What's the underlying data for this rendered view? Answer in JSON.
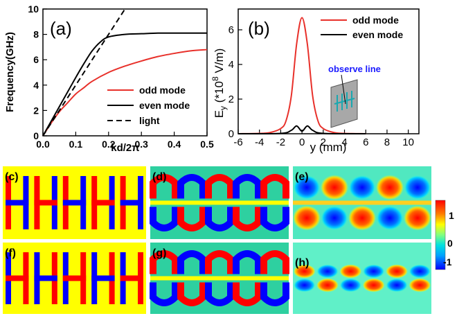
{
  "figure": {
    "colorbar": {
      "ticks": [
        "1",
        "0",
        "-1"
      ],
      "colors": [
        "#0000ff",
        "#00a0ff",
        "#00e0e0",
        "#80ff80",
        "#ffff00",
        "#ff8000",
        "#ff0000"
      ]
    },
    "field_panels": [
      {
        "label": "(c)",
        "pattern": "solid"
      },
      {
        "label": "(d)",
        "pattern": "u-shapes"
      },
      {
        "label": "(e)",
        "pattern": "dipoles"
      },
      {
        "label": "(f)",
        "pattern": "solid"
      },
      {
        "label": "(g)",
        "pattern": "u-shapes"
      },
      {
        "label": "(h)",
        "pattern": "ovals"
      }
    ],
    "inset": {
      "label": "observe line"
    }
  },
  "chart_data": [
    {
      "panel": "(a)",
      "type": "line",
      "xlabel": "kd/2π",
      "ylabel": "Frequency(GHz)",
      "xlim": [
        0.0,
        0.5
      ],
      "ylim": [
        0,
        10
      ],
      "xticks": [
        "0.0",
        "0.1",
        "0.2",
        "0.3",
        "0.4",
        "0.5"
      ],
      "yticks": [
        "0",
        "2",
        "4",
        "6",
        "8",
        "10"
      ],
      "legend_position": "bottom-right",
      "series": [
        {
          "name": "odd mode",
          "color": "#e8302a",
          "dash": "solid",
          "x": [
            0,
            0.025,
            0.05,
            0.075,
            0.1,
            0.125,
            0.15,
            0.2,
            0.25,
            0.3,
            0.35,
            0.4,
            0.45,
            0.5
          ],
          "y": [
            0,
            1.0,
            1.9,
            2.6,
            3.3,
            3.8,
            4.3,
            5.0,
            5.5,
            5.9,
            6.25,
            6.5,
            6.7,
            6.8
          ]
        },
        {
          "name": "even mode",
          "color": "#000000",
          "dash": "solid",
          "x": [
            0,
            0.025,
            0.05,
            0.075,
            0.1,
            0.125,
            0.15,
            0.175,
            0.2,
            0.25,
            0.3,
            0.35,
            0.4,
            0.45,
            0.5
          ],
          "y": [
            0,
            1.15,
            2.3,
            3.45,
            4.6,
            5.7,
            6.7,
            7.4,
            7.8,
            8.0,
            8.05,
            8.1,
            8.1,
            8.1,
            8.1
          ]
        },
        {
          "name": "light",
          "color": "#000000",
          "dash": "dashed",
          "x": [
            0,
            0.05,
            0.1,
            0.15,
            0.2,
            0.25
          ],
          "y": [
            0,
            2.0,
            4.0,
            6.0,
            8.0,
            10.0
          ]
        }
      ]
    },
    {
      "panel": "(b)",
      "type": "line",
      "xlabel": "y (mm)",
      "ylabel": "E",
      "ylabel_sub": "y",
      "ylabel_rest": " (*10",
      "ylabel_sup": "8",
      "ylabel_tail": " V/m)",
      "xlim": [
        -6,
        11
      ],
      "ylim": [
        0,
        7.2
      ],
      "xticks": [
        "-6",
        "-4",
        "-2",
        "0",
        "2",
        "4",
        "6",
        "8",
        "10"
      ],
      "yticks": [
        "0",
        "2",
        "4",
        "6"
      ],
      "legend_position": "top-right",
      "series": [
        {
          "name": "odd mode",
          "color": "#e8302a",
          "dash": "solid",
          "x": [
            -6,
            -4,
            -3,
            -2,
            -1.5,
            -1,
            -0.5,
            0,
            0.5,
            1,
            1.5,
            2,
            3,
            4,
            6
          ],
          "y": [
            0,
            0.02,
            0.07,
            0.3,
            0.75,
            2.2,
            5.2,
            6.7,
            5.2,
            2.2,
            0.75,
            0.3,
            0.07,
            0.02,
            0
          ]
        },
        {
          "name": "even mode",
          "color": "#000000",
          "dash": "solid",
          "x": [
            -6,
            -2,
            -1,
            -0.5,
            0,
            0.5,
            1,
            2,
            6
          ],
          "y": [
            0,
            0.02,
            0.2,
            0.45,
            0.15,
            0.45,
            0.2,
            0.02,
            0
          ]
        }
      ]
    }
  ]
}
